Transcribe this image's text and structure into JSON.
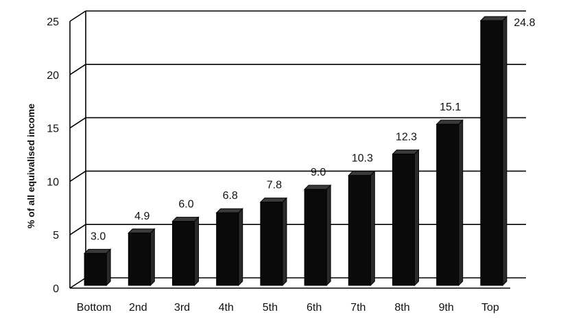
{
  "chart_data": {
    "type": "bar",
    "title": "",
    "xlabel": "",
    "ylabel": "% of all equivalised income",
    "categories": [
      "Bottom",
      "2nd",
      "3rd",
      "4th",
      "5th",
      "6th",
      "7th",
      "8th",
      "9th",
      "Top"
    ],
    "values": [
      3.0,
      4.9,
      6.0,
      6.8,
      7.8,
      9.0,
      10.3,
      12.3,
      15.1,
      24.8
    ],
    "value_labels": [
      "3.0",
      "4.9",
      "6.0",
      "6.8",
      "7.8",
      "9.0",
      "10.3",
      "12.3",
      "15.1",
      "24.8"
    ],
    "ylim": [
      0,
      25
    ],
    "yticks": [
      "0",
      "5",
      "10",
      "15",
      "20",
      "25"
    ],
    "grid": true,
    "legend": "none",
    "bar_color": "#0a0a0a",
    "style": "3d-bar"
  }
}
